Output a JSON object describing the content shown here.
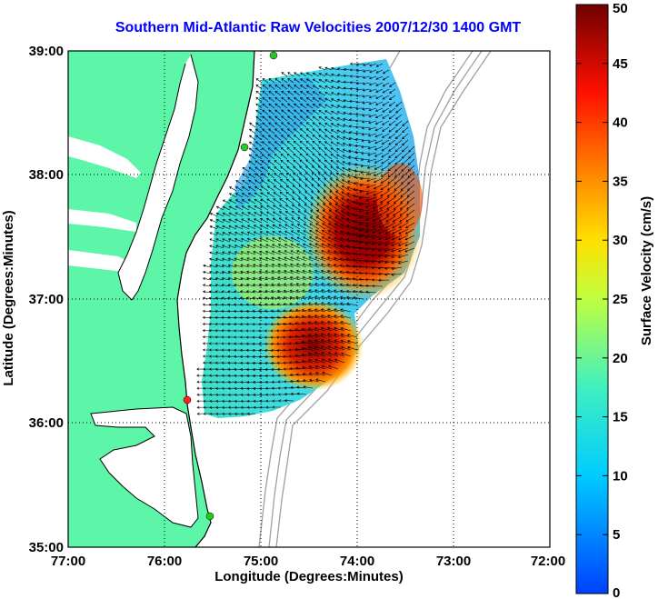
{
  "title": "Southern Mid-Atlantic Raw Velocities 2007/12/30 1400 GMT",
  "x_axis": {
    "label": "Longitude (Degrees:Minutes)",
    "ticks": [
      "77:00",
      "76:00",
      "75:00",
      "74:00",
      "73:00",
      "72:00"
    ]
  },
  "y_axis": {
    "label": "Latitude (Degrees:Minutes)",
    "ticks": [
      "39:00",
      "38:00",
      "37:00",
      "36:00",
      "35:00"
    ]
  },
  "colorbar": {
    "label": "Surface Velocity (cm/s)",
    "ticks": [
      "50",
      "45",
      "40",
      "35",
      "30",
      "25",
      "20",
      "15",
      "10",
      "5",
      "0"
    ],
    "min": 0,
    "max": 50
  },
  "colors": {
    "land": "#5df5a8",
    "coastline": "#000000",
    "bathymetry": "#a0a0a0",
    "title": "#0000ff",
    "station_green": "#22cc22",
    "station_red": "#ff2020"
  },
  "stations": [
    {
      "name": "green-north",
      "color": "green"
    },
    {
      "name": "green-mid",
      "color": "green"
    },
    {
      "name": "red",
      "color": "red"
    },
    {
      "name": "green-south",
      "color": "green"
    }
  ]
}
